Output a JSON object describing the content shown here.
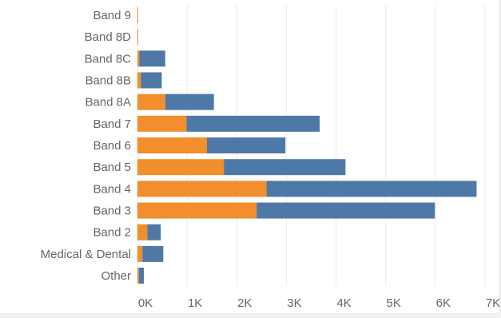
{
  "chart_data": {
    "type": "bar",
    "orientation": "horizontal",
    "stacked": true,
    "categories": [
      "Band 9",
      "Band 8D",
      "Band 8C",
      "Band 8B",
      "Band 8A",
      "Band 7",
      "Band 6",
      "Band 5",
      "Band 4",
      "Band 3",
      "Band 2",
      "Medical & Dental",
      "Other"
    ],
    "series": [
      {
        "color": "#f28e2b",
        "values": [
          10,
          15,
          40,
          70,
          560,
          990,
          1400,
          1740,
          2600,
          2400,
          200,
          100,
          30
        ]
      },
      {
        "color": "#4e79a7",
        "values": [
          0,
          0,
          520,
          420,
          980,
          2680,
          1580,
          2450,
          4230,
          3590,
          270,
          420,
          100
        ]
      }
    ],
    "xlim": [
      0,
      7000
    ],
    "x_ticks": [
      0,
      1000,
      2000,
      3000,
      4000,
      5000,
      6000,
      7000
    ],
    "x_tick_labels": [
      "0K",
      "1K",
      "2K",
      "3K",
      "4K",
      "5K",
      "6K",
      "7K"
    ],
    "xlabel": "",
    "ylabel": "",
    "title": "",
    "grid": true,
    "legend": "none"
  }
}
